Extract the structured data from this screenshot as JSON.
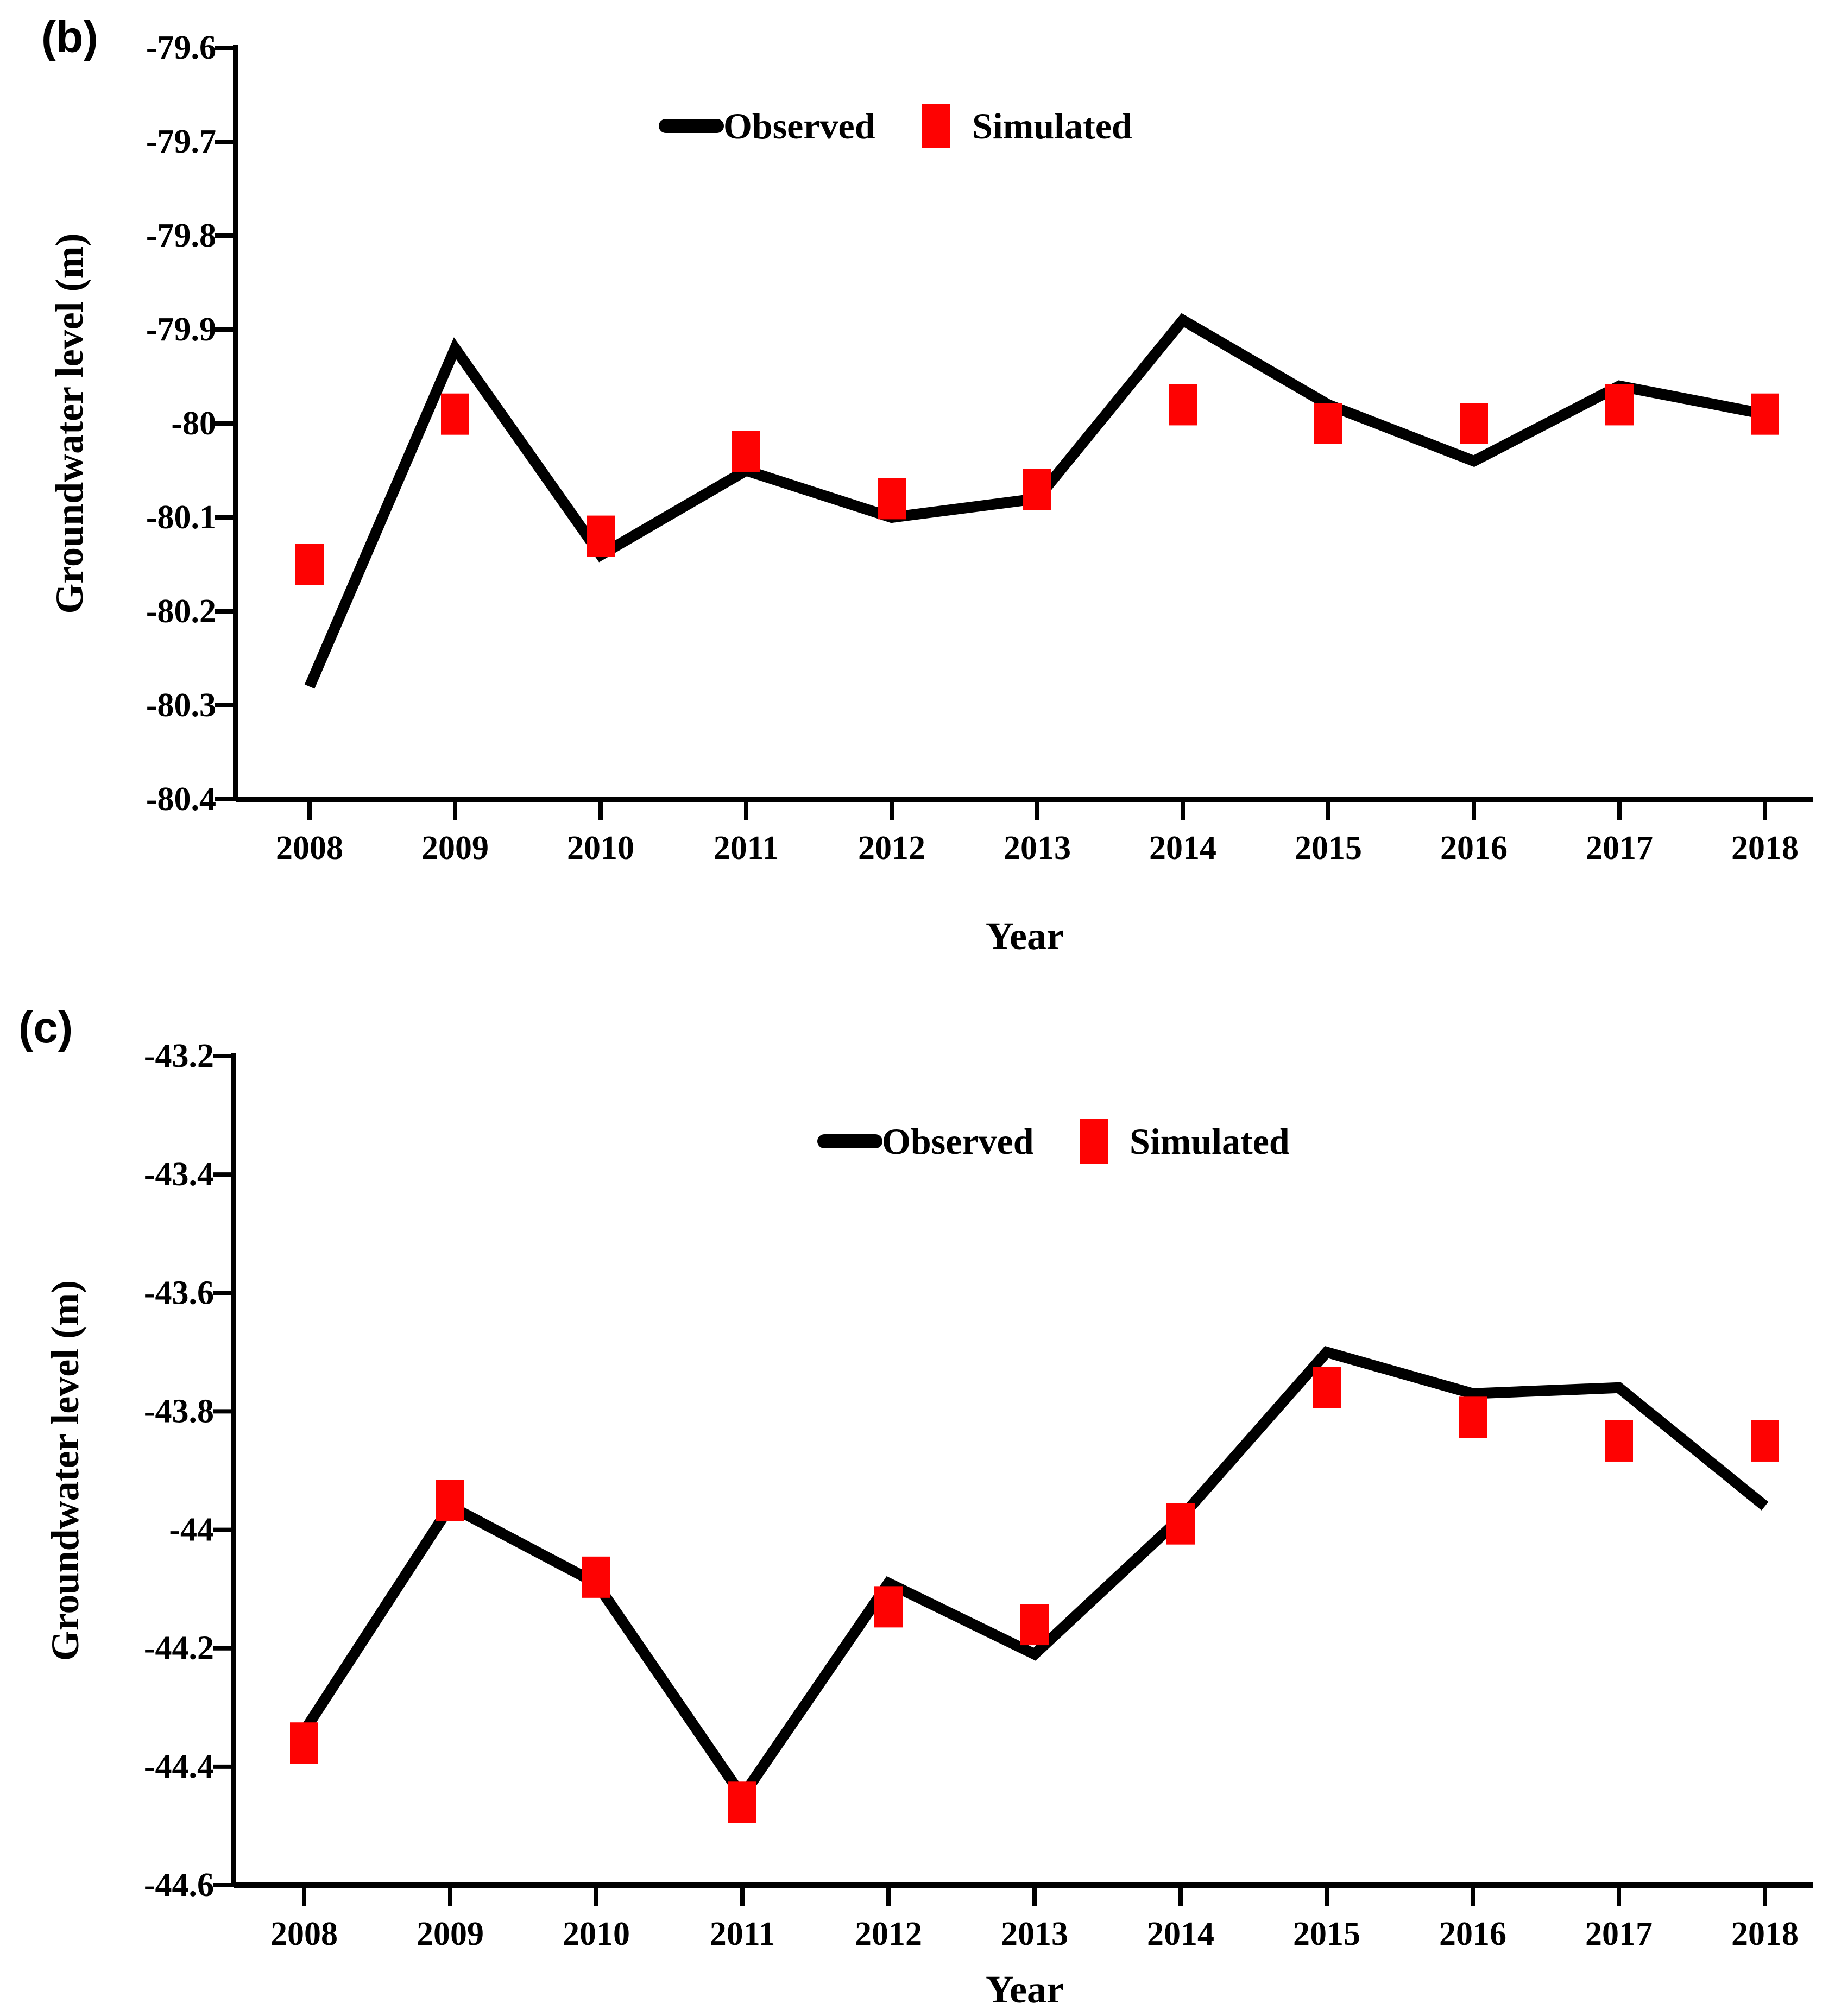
{
  "colors": {
    "observed": "#000000",
    "simulated": "#fe0202",
    "background": "#ffffff"
  },
  "panel_labels": {
    "b": "(b)",
    "c": "(c)"
  },
  "chart_data": [
    {
      "type": "line",
      "panel_label": "(b)",
      "title": "",
      "xlabel": "Year",
      "ylabel": "Groundwater level (m)",
      "x": [
        2008,
        2009,
        2010,
        2011,
        2012,
        2013,
        2014,
        2015,
        2016,
        2017,
        2018
      ],
      "xtick_labels": [
        "2008",
        "2009",
        "2010",
        "2011",
        "2012",
        "2013",
        "2014",
        "2015",
        "2016",
        "2017",
        "2018"
      ],
      "ylim": [
        -80.4,
        -79.6
      ],
      "ytick_step": 0.1,
      "ytick_labels": [
        "-79.6",
        "-79.7",
        "-79.8",
        "-79.9",
        "-80",
        "-80.1",
        "-80.2",
        "-80.3",
        "-80.4"
      ],
      "grid": false,
      "legend_position": "top-center-inside",
      "legend": [
        "Observed",
        "Simulated"
      ],
      "series": [
        {
          "name": "Observed",
          "style": "line",
          "color": "#000000",
          "values": [
            -80.28,
            -79.92,
            -80.14,
            -80.05,
            -80.1,
            -80.08,
            -79.89,
            -79.98,
            -80.04,
            -79.96,
            -79.99
          ]
        },
        {
          "name": "Simulated",
          "style": "square-markers",
          "color": "#fe0202",
          "values": [
            -80.15,
            -79.99,
            -80.12,
            -80.03,
            -80.08,
            -80.07,
            -79.98,
            -80.0,
            -80.0,
            -79.98,
            -79.99
          ]
        }
      ]
    },
    {
      "type": "line",
      "panel_label": "(c)",
      "title": "",
      "xlabel": "Year",
      "ylabel": "Groundwater level (m)",
      "x": [
        2008,
        2009,
        2010,
        2011,
        2012,
        2013,
        2014,
        2015,
        2016,
        2017,
        2018
      ],
      "xtick_labels": [
        "2008",
        "2009",
        "2010",
        "2011",
        "2012",
        "2013",
        "2014",
        "2015",
        "2016",
        "2017",
        "2018"
      ],
      "ylim": [
        -44.6,
        -43.2
      ],
      "ytick_step": 0.2,
      "ytick_labels": [
        "-43.2",
        "-43.4",
        "-43.6",
        "-43.8",
        "-44",
        "-44.2",
        "-44.4",
        "-44.6"
      ],
      "grid": false,
      "legend_position": "top-center-inside",
      "legend": [
        "Observed",
        "Simulated"
      ],
      "series": [
        {
          "name": "Observed",
          "style": "line",
          "color": "#000000",
          "values": [
            -44.34,
            -43.96,
            -44.09,
            -44.45,
            -44.09,
            -44.21,
            -43.98,
            -43.7,
            -43.77,
            -43.76,
            -43.96
          ]
        },
        {
          "name": "Simulated",
          "style": "square-markers",
          "color": "#fe0202",
          "values": [
            -44.36,
            -43.95,
            -44.08,
            -44.46,
            -44.13,
            -44.16,
            -43.99,
            -43.76,
            -43.81,
            -43.85,
            -43.85
          ]
        }
      ]
    }
  ]
}
